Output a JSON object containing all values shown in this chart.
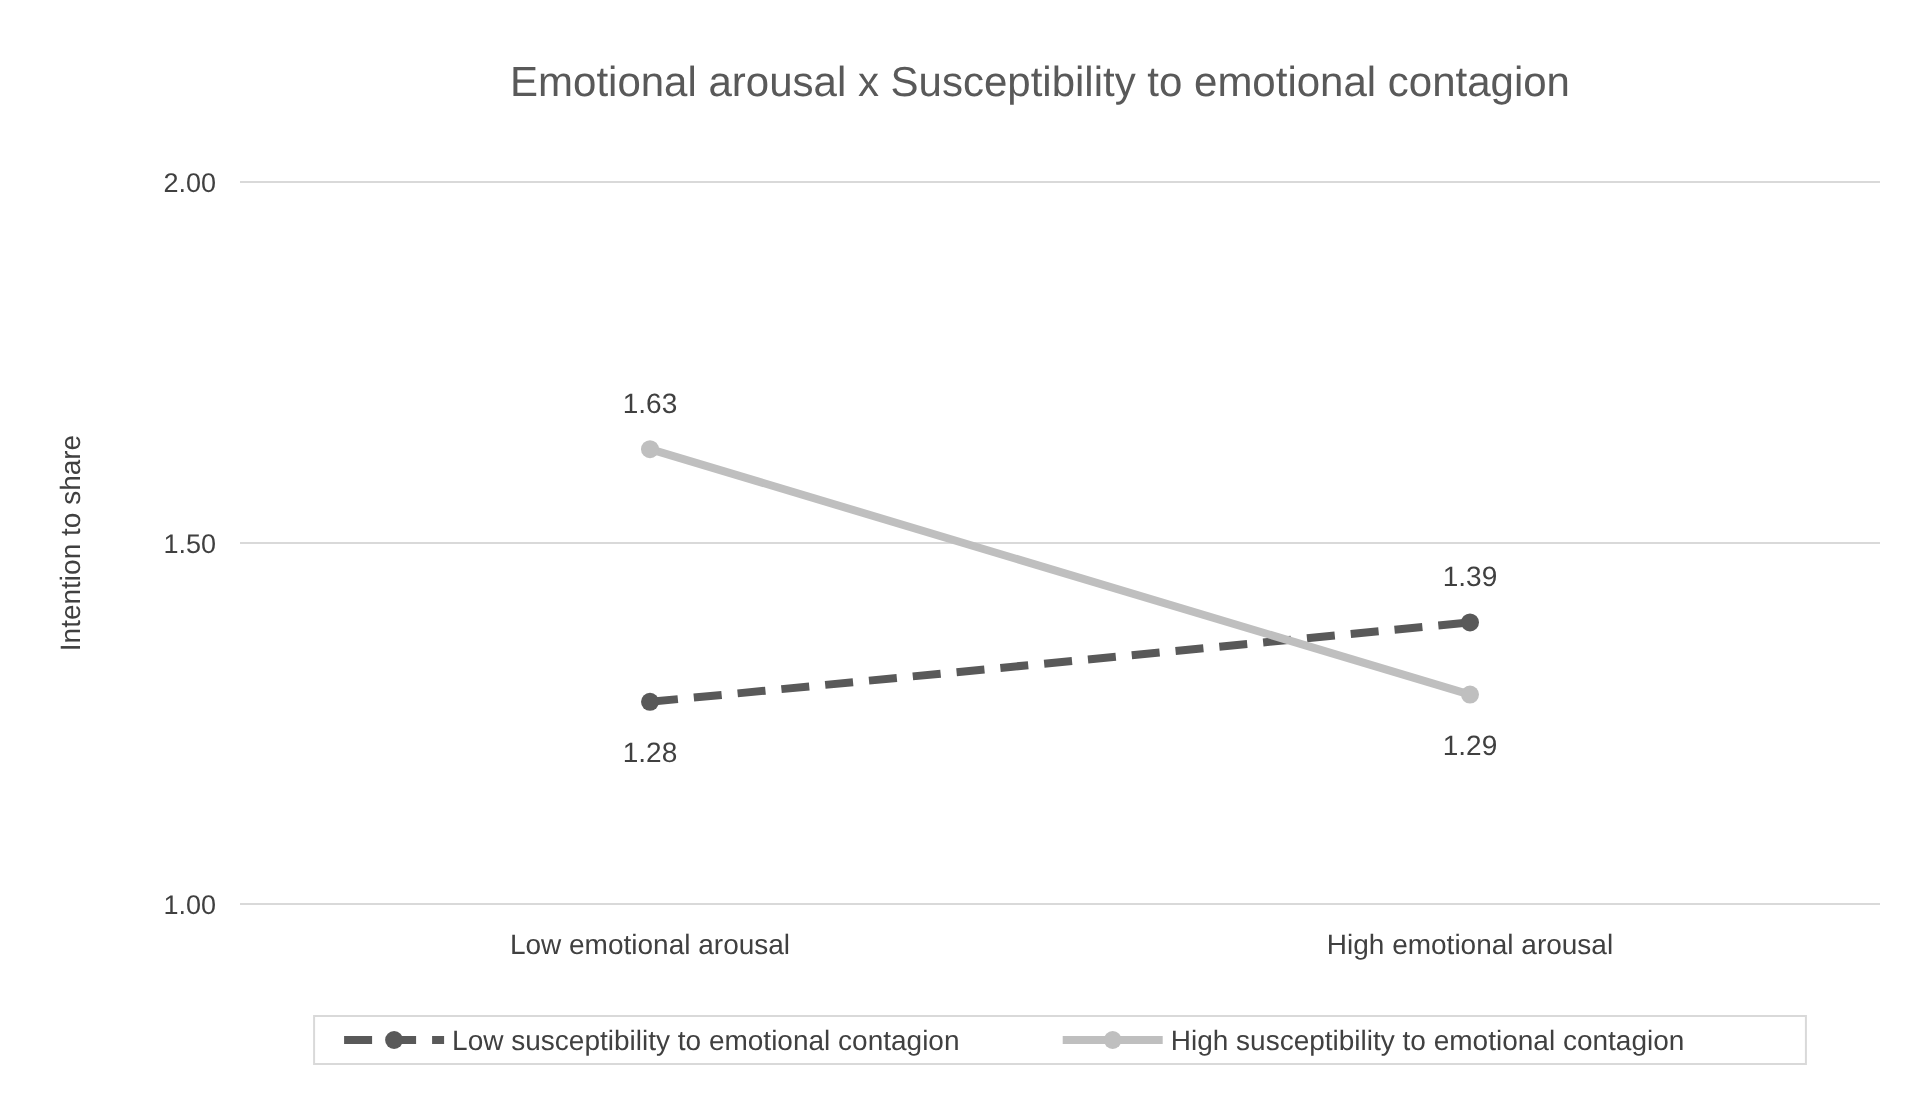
{
  "chart_data": {
    "type": "line",
    "title": "Emotional arousal x  Susceptibility to emotional contagion",
    "ylabel": "Intention to share",
    "categories": [
      "Low emotional arousal",
      "High emotional arousal"
    ],
    "series": [
      {
        "name": "Low susceptibility to emotional contagion",
        "color": "#595959",
        "values": [
          1.28,
          1.39
        ],
        "line_style": "dashed"
      },
      {
        "name": "High susceptibility to emotional contagion",
        "color": "#bfbfbf",
        "values": [
          1.63,
          1.29
        ],
        "line_style": "solid"
      }
    ],
    "ylim": [
      1,
      2
    ],
    "yticks": [
      {
        "value": 1,
        "label": "1.00"
      },
      {
        "value": 1.5,
        "label": "1.50"
      },
      {
        "value": 2,
        "label": "2.00"
      }
    ],
    "grid": "y",
    "legend": "bottom",
    "marker": "circle",
    "data_labels": true
  }
}
